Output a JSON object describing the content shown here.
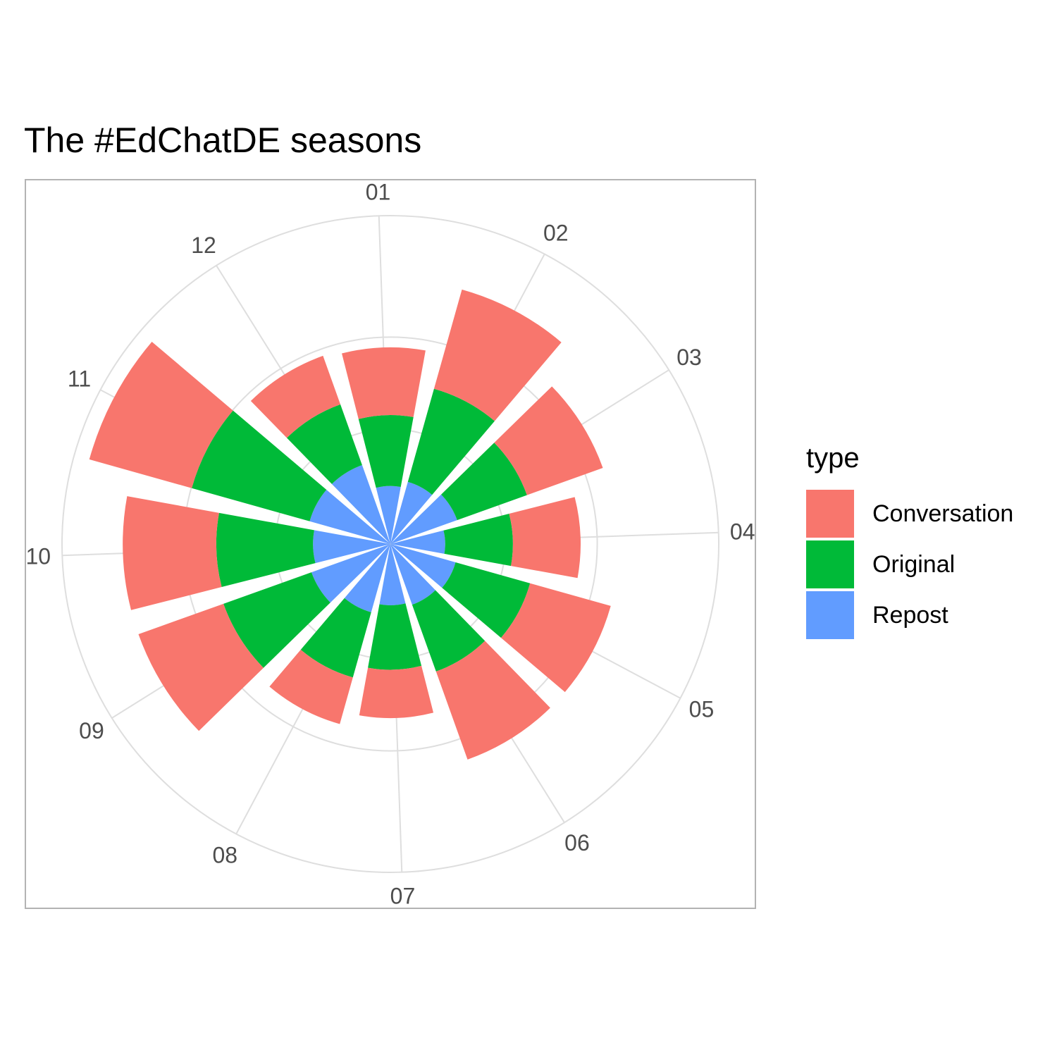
{
  "chart_data": {
    "type": "bar",
    "coord": "polar",
    "stacked": true,
    "title": "The #EdChatDE seasons",
    "categories": [
      "01",
      "02",
      "03",
      "04",
      "05",
      "06",
      "07",
      "08",
      "09",
      "10",
      "11",
      "12"
    ],
    "series": [
      {
        "name": "Repost",
        "color": "#619CFF",
        "values": [
          90,
          100,
          110,
          85,
          105,
          100,
          95,
          110,
          130,
          120,
          130,
          130
        ]
      },
      {
        "name": "Original",
        "color": "#00BA38",
        "values": [
          110,
          150,
          115,
          105,
          120,
          110,
          100,
          105,
          145,
          150,
          190,
          100
        ]
      },
      {
        "name": "Conversation",
        "color": "#F8766D",
        "values": [
          105,
          160,
          125,
          105,
          130,
          145,
          75,
          75,
          140,
          145,
          165,
          80
        ]
      }
    ],
    "grid": true,
    "legend_position": "right"
  },
  "legend": {
    "title": "type",
    "items": [
      {
        "label": "Conversation",
        "color": "#F8766D"
      },
      {
        "label": "Original",
        "color": "#00BA38"
      },
      {
        "label": "Repost",
        "color": "#619CFF"
      }
    ]
  }
}
